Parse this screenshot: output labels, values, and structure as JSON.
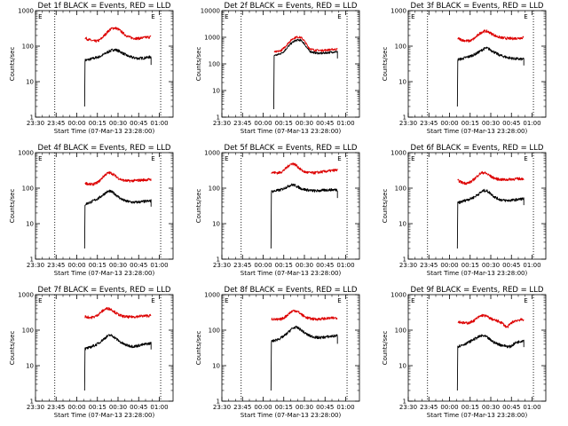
{
  "chart_data": [
    {
      "type": "line",
      "title": "Det 1f BLACK = Events, RED = LLD",
      "xlabel": "Start Time (07-Mar-13 23:28:00)",
      "ylabel": "Counts/sec",
      "ylim": [
        1,
        1000
      ],
      "yscale": "log",
      "x_tick_labels": [
        "23:30",
        "23:45",
        "00:00",
        "00:15",
        "00:30",
        "00:45",
        "01:00"
      ],
      "y_tick_labels": [
        "1",
        "10",
        "100",
        "1000"
      ],
      "marker_labels": [
        "E",
        "E"
      ],
      "start_min": 36,
      "series": [
        {
          "color": "#000000",
          "values": [
            40,
            41,
            42,
            44,
            45,
            47,
            49,
            50,
            54,
            58,
            63,
            68,
            73,
            77,
            80,
            78,
            75,
            70,
            65,
            60,
            56,
            52,
            50,
            48,
            47,
            46,
            45,
            46,
            46,
            47,
            48,
            49,
            50
          ]
        },
        {
          "color": "#dd0000",
          "values": [
            170,
            160,
            152,
            145,
            140,
            138,
            140,
            148,
            165,
            190,
            220,
            255,
            290,
            315,
            325,
            320,
            300,
            275,
            245,
            220,
            200,
            185,
            175,
            170,
            168,
            166,
            165,
            170,
            172,
            175,
            178,
            180,
            185
          ]
        }
      ]
    },
    {
      "type": "line",
      "title": "Det 2f BLACK = Events, RED = LLD",
      "xlabel": "Start Time (07-Mar-13 23:28:00)",
      "ylabel": "Counts/sec",
      "ylim": [
        1,
        10000
      ],
      "yscale": "log",
      "x_tick_labels": [
        "23:30",
        "23:45",
        "00:00",
        "00:15",
        "00:30",
        "00:45",
        "01:00"
      ],
      "y_tick_labels": [
        "1",
        "10",
        "100",
        "1000",
        "10000"
      ],
      "marker_labels": [
        "E",
        "E"
      ],
      "start_min": 38,
      "series": [
        {
          "color": "#000000",
          "values": [
            210,
            215,
            225,
            240,
            260,
            300,
            360,
            440,
            530,
            620,
            700,
            760,
            790,
            780,
            720,
            600,
            470,
            360,
            300,
            280,
            270,
            260,
            255,
            250,
            250,
            255,
            260,
            265,
            270,
            275,
            280,
            285,
            290
          ]
        },
        {
          "color": "#dd0000",
          "values": [
            280,
            285,
            295,
            310,
            340,
            400,
            480,
            590,
            710,
            830,
            930,
            1000,
            1030,
            1000,
            930,
            780,
            600,
            460,
            380,
            350,
            340,
            330,
            325,
            322,
            320,
            325,
            330,
            335,
            340,
            345,
            350,
            355,
            360
          ]
        }
      ]
    },
    {
      "type": "line",
      "title": "Det 3f BLACK = Events, RED = LLD",
      "xlabel": "Start Time (07-Mar-13 23:28:00)",
      "ylabel": "Counts/sec",
      "ylim": [
        1,
        1000
      ],
      "yscale": "log",
      "x_tick_labels": [
        "23:30",
        "23:45",
        "00:00",
        "00:15",
        "00:30",
        "00:45",
        "01:00"
      ],
      "y_tick_labels": [
        "1",
        "10",
        "100",
        "1000"
      ],
      "marker_labels": [
        "E",
        "E"
      ],
      "start_min": 36,
      "series": [
        {
          "color": "#000000",
          "values": [
            42,
            43,
            44,
            46,
            48,
            50,
            52,
            55,
            58,
            62,
            67,
            73,
            80,
            86,
            88,
            84,
            78,
            72,
            66,
            61,
            57,
            54,
            52,
            50,
            48,
            47,
            46,
            45,
            44,
            44,
            43,
            43,
            43
          ]
        },
        {
          "color": "#dd0000",
          "values": [
            165,
            158,
            150,
            145,
            142,
            140,
            142,
            150,
            165,
            185,
            210,
            235,
            255,
            265,
            262,
            250,
            232,
            215,
            200,
            188,
            180,
            174,
            170,
            168,
            166,
            165,
            164,
            165,
            166,
            168,
            170,
            172,
            175
          ]
        }
      ]
    },
    {
      "type": "line",
      "title": "Det 4f BLACK = Events, RED = LLD",
      "xlabel": "Start Time (07-Mar-13 23:28:00)",
      "ylabel": "Counts/sec",
      "ylim": [
        1,
        1000
      ],
      "yscale": "log",
      "x_tick_labels": [
        "23:30",
        "23:45",
        "00:00",
        "00:15",
        "00:30",
        "00:45",
        "01:00"
      ],
      "y_tick_labels": [
        "1",
        "10",
        "100",
        "1000"
      ],
      "marker_labels": [
        "E",
        "E"
      ],
      "start_min": 36,
      "series": [
        {
          "color": "#000000",
          "values": [
            35,
            37,
            39,
            41,
            44,
            47,
            50,
            54,
            60,
            67,
            74,
            80,
            82,
            78,
            72,
            65,
            58,
            52,
            48,
            45,
            43,
            42,
            41,
            40,
            40,
            40,
            41,
            41,
            42,
            42,
            43,
            43,
            44
          ]
        },
        {
          "color": "#dd0000",
          "values": [
            140,
            135,
            130,
            128,
            130,
            135,
            145,
            160,
            185,
            215,
            245,
            265,
            270,
            260,
            240,
            215,
            195,
            180,
            170,
            165,
            162,
            160,
            160,
            162,
            163,
            165,
            166,
            168,
            170,
            172,
            173,
            174,
            175
          ]
        }
      ]
    },
    {
      "type": "line",
      "title": "Det 5f BLACK = Events, RED = LLD",
      "xlabel": "Start Time (07-Mar-13 23:28:00)",
      "ylabel": "Counts/sec",
      "ylim": [
        1,
        1000
      ],
      "yscale": "log",
      "x_tick_labels": [
        "23:30",
        "23:45",
        "00:00",
        "00:15",
        "00:30",
        "00:45",
        "01:00"
      ],
      "y_tick_labels": [
        "1",
        "10",
        "100",
        "1000"
      ],
      "marker_labels": [
        "E",
        "E"
      ],
      "start_min": 36,
      "series": [
        {
          "color": "#000000",
          "values": [
            80,
            82,
            84,
            86,
            88,
            92,
            98,
            105,
            112,
            120,
            125,
            122,
            115,
            108,
            100,
            95,
            92,
            90,
            88,
            86,
            85,
            84,
            84,
            85,
            86,
            87,
            88,
            89,
            90,
            90,
            90,
            90,
            90
          ]
        },
        {
          "color": "#dd0000",
          "values": [
            280,
            275,
            272,
            270,
            275,
            290,
            320,
            360,
            410,
            460,
            490,
            480,
            440,
            390,
            345,
            310,
            290,
            280,
            275,
            272,
            270,
            272,
            275,
            280,
            285,
            290,
            295,
            300,
            305,
            310,
            315,
            320,
            325
          ]
        }
      ]
    },
    {
      "type": "line",
      "title": "Det 6f BLACK = Events, RED = LLD",
      "xlabel": "Start Time (07-Mar-13 23:28:00)",
      "ylabel": "Counts/sec",
      "ylim": [
        1,
        1000
      ],
      "yscale": "log",
      "x_tick_labels": [
        "23:30",
        "23:45",
        "00:00",
        "00:15",
        "00:30",
        "00:45",
        "01:00"
      ],
      "y_tick_labels": [
        "1",
        "10",
        "100",
        "1000"
      ],
      "marker_labels": [
        "E",
        "E"
      ],
      "start_min": 36,
      "series": [
        {
          "color": "#000000",
          "values": [
            38,
            40,
            42,
            44,
            46,
            48,
            50,
            53,
            56,
            62,
            68,
            75,
            82,
            86,
            84,
            78,
            70,
            62,
            56,
            52,
            49,
            47,
            46,
            45,
            45,
            45,
            46,
            46,
            47,
            48,
            49,
            50,
            50
          ]
        },
        {
          "color": "#dd0000",
          "values": [
            165,
            155,
            145,
            140,
            138,
            140,
            148,
            160,
            180,
            205,
            235,
            260,
            275,
            270,
            255,
            235,
            215,
            200,
            190,
            182,
            178,
            175,
            174,
            173,
            175,
            177,
            179,
            180,
            182,
            183,
            184,
            185,
            186
          ]
        }
      ]
    },
    {
      "type": "line",
      "title": "Det 7f BLACK = Events, RED = LLD",
      "xlabel": "Start Time (07-Mar-13 23:28:00)",
      "ylabel": "Counts/sec",
      "ylim": [
        1,
        1000
      ],
      "yscale": "log",
      "x_tick_labels": [
        "23:30",
        "23:45",
        "00:00",
        "00:15",
        "00:30",
        "00:45",
        "01:00"
      ],
      "y_tick_labels": [
        "1",
        "10",
        "100",
        "1000"
      ],
      "marker_labels": [
        "E",
        "E"
      ],
      "start_min": 36,
      "series": [
        {
          "color": "#000000",
          "values": [
            30,
            31,
            32,
            34,
            36,
            38,
            41,
            45,
            50,
            56,
            62,
            68,
            72,
            70,
            65,
            58,
            52,
            47,
            43,
            40,
            38,
            37,
            36,
            35,
            35,
            36,
            37,
            38,
            39,
            40,
            41,
            42,
            43
          ]
        },
        {
          "color": "#dd0000",
          "values": [
            240,
            235,
            230,
            228,
            232,
            245,
            265,
            295,
            330,
            365,
            395,
            410,
            400,
            375,
            340,
            305,
            280,
            262,
            250,
            242,
            238,
            235,
            235,
            238,
            240,
            243,
            246,
            248,
            250,
            252,
            254,
            256,
            258
          ]
        }
      ]
    },
    {
      "type": "line",
      "title": "Det 8f BLACK = Events, RED = LLD",
      "xlabel": "Start Time (07-Mar-13 23:28:00)",
      "ylabel": "Counts/sec",
      "ylim": [
        1,
        1000
      ],
      "yscale": "log",
      "x_tick_labels": [
        "23:30",
        "23:45",
        "00:00",
        "00:15",
        "00:30",
        "00:45",
        "01:00"
      ],
      "y_tick_labels": [
        "1",
        "10",
        "100",
        "1000"
      ],
      "marker_labels": [
        "E",
        "E"
      ],
      "start_min": 36,
      "series": [
        {
          "color": "#000000",
          "values": [
            48,
            50,
            52,
            55,
            58,
            62,
            68,
            75,
            85,
            98,
            110,
            118,
            120,
            115,
            105,
            95,
            85,
            78,
            72,
            68,
            66,
            64,
            62,
            62,
            62,
            63,
            64,
            65,
            66,
            67,
            68,
            69,
            70
          ]
        },
        {
          "color": "#dd0000",
          "values": [
            210,
            205,
            200,
            198,
            200,
            208,
            222,
            245,
            275,
            310,
            340,
            355,
            350,
            325,
            295,
            265,
            242,
            228,
            218,
            212,
            208,
            205,
            205,
            206,
            208,
            210,
            212,
            214,
            216,
            218,
            220,
            222,
            224
          ]
        }
      ]
    },
    {
      "type": "line",
      "title": "Det 9f BLACK = Events, RED = LLD",
      "xlabel": "Start Time (07-Mar-13 23:28:00)",
      "ylabel": "Counts/sec",
      "ylim": [
        1,
        1000
      ],
      "yscale": "log",
      "x_tick_labels": [
        "23:30",
        "23:45",
        "00:00",
        "00:15",
        "00:30",
        "00:45",
        "01:00"
      ],
      "y_tick_labels": [
        "1",
        "10",
        "100",
        "1000"
      ],
      "marker_labels": [
        "E",
        "E"
      ],
      "start_min": 36,
      "series": [
        {
          "color": "#000000",
          "values": [
            35,
            36,
            38,
            40,
            42,
            45,
            48,
            52,
            56,
            60,
            64,
            68,
            70,
            68,
            64,
            58,
            52,
            48,
            44,
            42,
            40,
            38,
            37,
            36,
            35,
            34,
            36,
            40,
            44,
            46,
            48,
            50,
            52
          ]
        },
        {
          "color": "#dd0000",
          "values": [
            175,
            170,
            165,
            160,
            158,
            160,
            165,
            175,
            190,
            210,
            230,
            250,
            262,
            258,
            245,
            228,
            212,
            200,
            190,
            182,
            175,
            165,
            150,
            130,
            120,
            140,
            160,
            175,
            185,
            190,
            195,
            198,
            200
          ]
        }
      ]
    }
  ]
}
